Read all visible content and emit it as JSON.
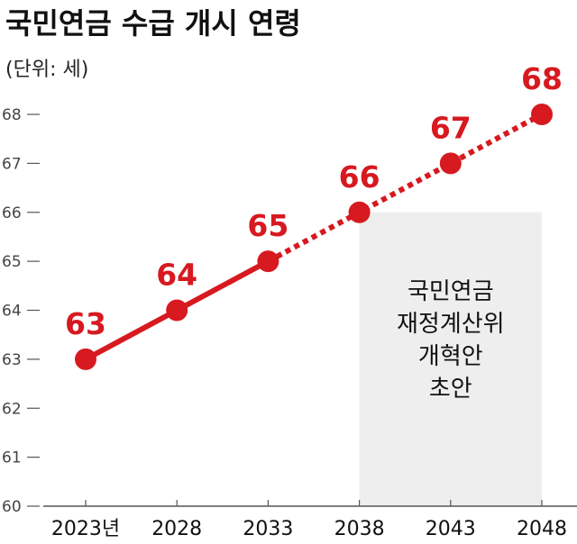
{
  "chart_data": {
    "type": "line",
    "title": "국민연금 수급 개시 연령",
    "subtitle": "(단위: 세)",
    "categories": [
      "2023년",
      "2028",
      "2033",
      "2038",
      "2043",
      "2048"
    ],
    "series": [
      {
        "values": [
          63,
          64,
          65,
          66,
          67,
          68
        ]
      }
    ],
    "data_labels": [
      "63",
      "64",
      "65",
      "66",
      "67",
      "68"
    ],
    "solid_until_index": 2,
    "dotted_from_index": 2,
    "highlight_region": {
      "from_category": "2038",
      "to_category": "2048",
      "label_lines": [
        "국민연금",
        "재정계산위",
        "개혁안",
        "초안"
      ]
    },
    "yticks": [
      "60",
      "61",
      "62",
      "63",
      "64",
      "65",
      "66",
      "67",
      "68"
    ],
    "ylim": [
      60,
      68
    ],
    "grid": false,
    "legend": "none"
  },
  "colors": {
    "series": "#d71920",
    "shade": "#eeeeee",
    "text": "#111111",
    "tick_text": "#444444",
    "axis": "#555555"
  }
}
